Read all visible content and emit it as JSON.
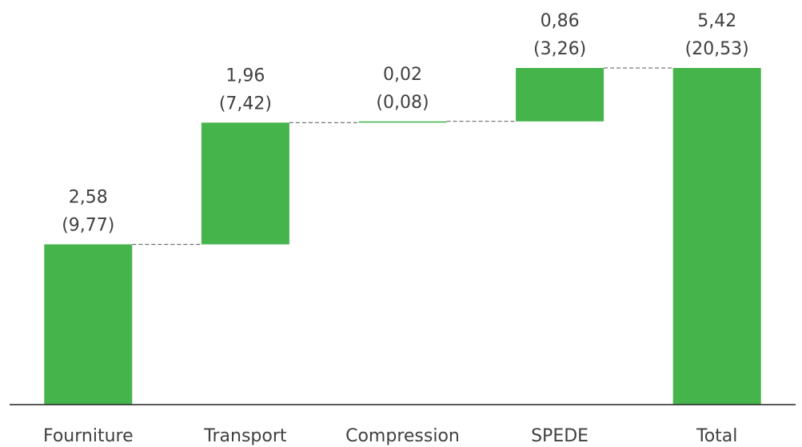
{
  "chart_data": {
    "type": "waterfall",
    "categories": [
      "Fourniture",
      "Transport",
      "Compression",
      "SPEDE",
      "Total"
    ],
    "values": [
      2.58,
      1.96,
      0.02,
      0.86,
      5.42
    ],
    "value_labels": [
      "2,58",
      "1,96",
      "0,02",
      "0,86",
      "5,42"
    ],
    "secondary_labels": [
      "(9,77)",
      "(7,42)",
      "(0,08)",
      "(3,26)",
      "(20,53)"
    ],
    "is_total": [
      false,
      false,
      false,
      false,
      true
    ],
    "color": "#44b44b"
  }
}
